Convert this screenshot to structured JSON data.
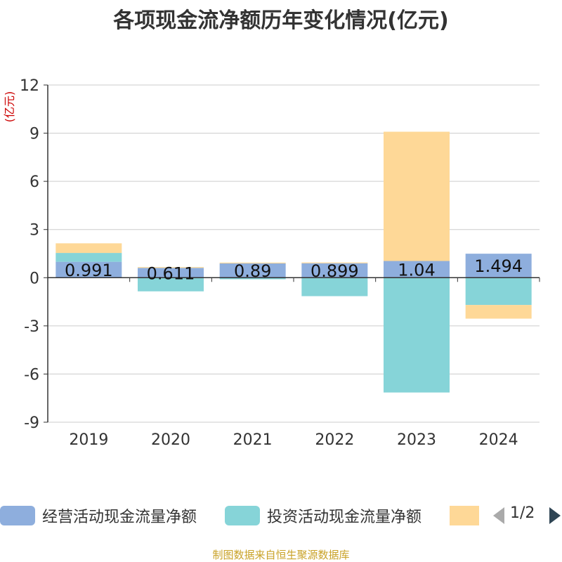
{
  "colors": {
    "operating": "#8eaedd",
    "investing": "#86d4d8",
    "financing": "#fed897",
    "axis": "#333333",
    "grid": "#cccccc",
    "source": "#c9a227",
    "ylabel": "#cc0000"
  },
  "chart_data": {
    "type": "bar",
    "stacked": true,
    "title": "各项现金流净额历年变化情况(亿元)",
    "ylabel": "(亿元)",
    "xlabel": "",
    "categories": [
      "2019",
      "2020",
      "2021",
      "2022",
      "2023",
      "2024"
    ],
    "ylim": [
      -9,
      12
    ],
    "yticks": [
      12,
      9,
      6,
      3,
      0,
      -3,
      -6,
      -9
    ],
    "ytick_labels": [
      "12",
      "9",
      "6",
      "3",
      "0",
      "-3",
      "-6",
      "-9"
    ],
    "series": [
      {
        "name": "经营活动现金流量净额",
        "values": [
          0.991,
          0.611,
          0.89,
          0.899,
          1.04,
          1.494
        ],
        "data_labels": [
          "0.991",
          "0.611",
          "0.89",
          "0.899",
          "1.04",
          "1.494"
        ]
      },
      {
        "name": "投资活动现金流量净额",
        "values": [
          0.55,
          -0.85,
          -0.1,
          -1.15,
          -7.15,
          -1.7
        ]
      },
      {
        "name": "",
        "values": [
          0.6,
          0.05,
          0.05,
          0.05,
          8.05,
          -0.85
        ]
      }
    ],
    "legend_position": "bottom"
  },
  "legend": {
    "items": [
      {
        "label": "经营活动现金流量净额"
      },
      {
        "label": "投资活动现金流量净额"
      },
      {
        "label": ""
      }
    ],
    "page_text": "1/2"
  },
  "source": "制图数据来自恒生聚源数据库"
}
